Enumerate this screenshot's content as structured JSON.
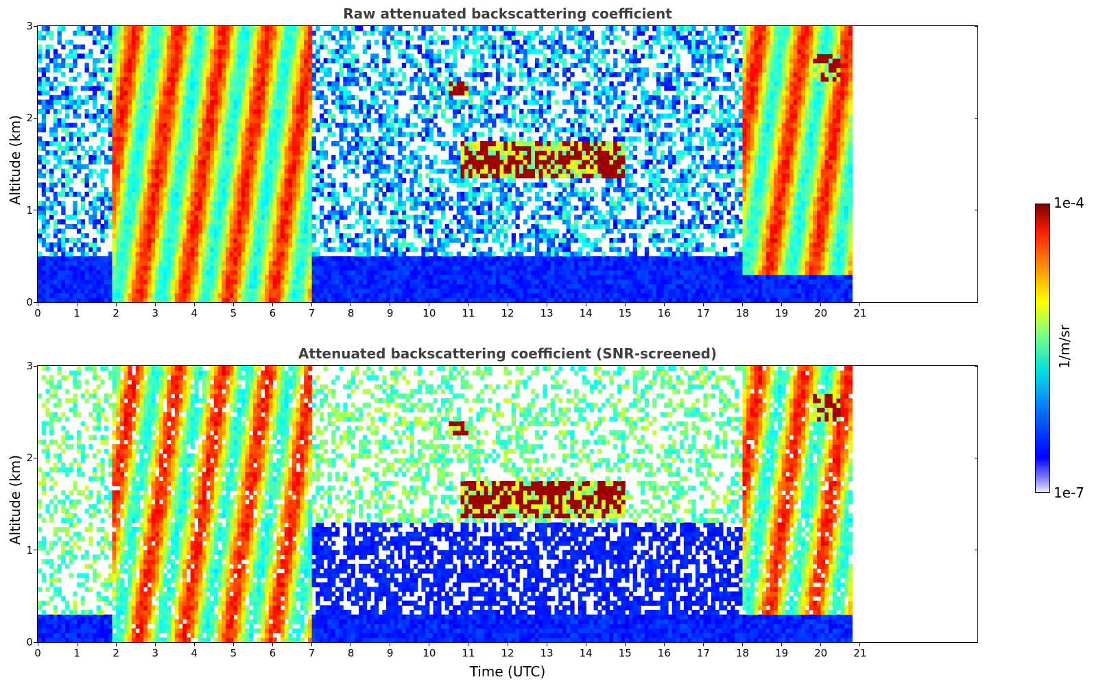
{
  "chart_data": [
    {
      "type": "heatmap",
      "title": "Raw attenuated backscattering coefficient",
      "xlabel": "",
      "ylabel": "Altitude (km)",
      "xlim": [
        0,
        24
      ],
      "ylim": [
        0,
        3
      ],
      "xticks": [
        "0",
        "1",
        "2",
        "3",
        "4",
        "5",
        "6",
        "7",
        "8",
        "9",
        "10",
        "11",
        "12",
        "13",
        "14",
        "15",
        "16",
        "17",
        "18",
        "19",
        "20",
        "21"
      ],
      "yticks": [
        "0",
        "1",
        "2",
        "3"
      ],
      "data_end_hour": 20.8,
      "features": [
        {
          "label": "boundary layer",
          "x": [
            0,
            20.8
          ],
          "y": [
            0,
            0.5
          ],
          "level": "low"
        },
        {
          "label": "precipitation streaks",
          "x": [
            1.9,
            7.0
          ],
          "y": [
            0,
            3
          ],
          "level": "high"
        },
        {
          "label": "thin cloud",
          "x": [
            10.5,
            11.0
          ],
          "y": [
            2.25,
            2.4
          ],
          "level": "max"
        },
        {
          "label": "cloud layer",
          "x": [
            10.8,
            15.0
          ],
          "y": [
            1.35,
            1.75
          ],
          "level": "max"
        },
        {
          "label": "precipitation streaks",
          "x": [
            18.0,
            20.8
          ],
          "y": [
            0.3,
            3
          ],
          "level": "high"
        },
        {
          "label": "cloud",
          "x": [
            19.8,
            20.5
          ],
          "y": [
            2.4,
            2.7
          ],
          "level": "max"
        }
      ]
    },
    {
      "type": "heatmap",
      "title": "Attenuated backscattering coefficient (SNR-screened)",
      "xlabel": "Time (UTC)",
      "ylabel": "Altitude (km)",
      "xlim": [
        0,
        24
      ],
      "ylim": [
        0,
        3
      ],
      "xticks": [
        "0",
        "1",
        "2",
        "3",
        "4",
        "5",
        "6",
        "7",
        "8",
        "9",
        "10",
        "11",
        "12",
        "13",
        "14",
        "15",
        "16",
        "17",
        "18",
        "19",
        "20",
        "21"
      ],
      "yticks": [
        "0",
        "1",
        "2",
        "3"
      ],
      "data_end_hour": 20.8,
      "features": [
        {
          "label": "boundary layer",
          "x": [
            0,
            20.8
          ],
          "y": [
            0,
            0.3
          ],
          "level": "low"
        },
        {
          "label": "precipitation streaks",
          "x": [
            1.9,
            7.0
          ],
          "y": [
            0,
            3
          ],
          "level": "high"
        },
        {
          "label": "thin cloud",
          "x": [
            10.5,
            11.0
          ],
          "y": [
            2.25,
            2.4
          ],
          "level": "max"
        },
        {
          "label": "cloud layer",
          "x": [
            10.8,
            15.0
          ],
          "y": [
            1.35,
            1.75
          ],
          "level": "max"
        },
        {
          "label": "precipitation streaks",
          "x": [
            18.0,
            20.8
          ],
          "y": [
            0.3,
            3
          ],
          "level": "high"
        },
        {
          "label": "cloud",
          "x": [
            19.8,
            20.5
          ],
          "y": [
            2.4,
            2.7
          ],
          "level": "max"
        }
      ]
    }
  ],
  "colorbar": {
    "max_label": "1e-4",
    "min_label": "1e-7",
    "unit_label": "1/m/sr",
    "scale": "log",
    "range": [
      1e-07,
      0.0001
    ],
    "colormap": "jet"
  }
}
